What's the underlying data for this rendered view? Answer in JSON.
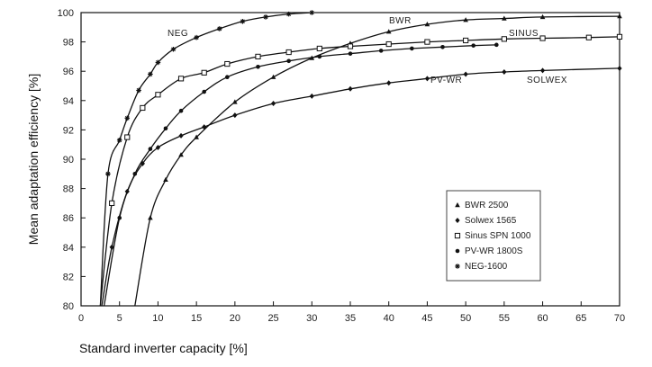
{
  "chart_data": {
    "type": "line",
    "title": "",
    "xlabel": "Standard inverter capacity [%]",
    "ylabel": "Mean adaptation efficiency [%]",
    "xlim": [
      0,
      70
    ],
    "ylim": [
      80,
      100
    ],
    "x_ticks": [
      0,
      5,
      10,
      15,
      20,
      25,
      30,
      35,
      40,
      45,
      50,
      55,
      60,
      65,
      70
    ],
    "y_ticks": [
      80,
      82,
      84,
      86,
      88,
      90,
      92,
      94,
      96,
      98,
      100
    ],
    "grid": false,
    "legend_position": "bottom-right",
    "series": [
      {
        "name": "BWR 2500",
        "label": "BWR",
        "marker": "triangle",
        "points": [
          [
            7,
            80
          ],
          [
            9,
            86
          ],
          [
            11,
            88.6
          ],
          [
            13,
            90.3
          ],
          [
            15,
            91.5
          ],
          [
            20,
            93.9
          ],
          [
            25,
            95.6
          ],
          [
            30,
            96.9
          ],
          [
            35,
            97.9
          ],
          [
            40,
            98.7
          ],
          [
            45,
            99.2
          ],
          [
            50,
            99.5
          ],
          [
            55,
            99.6
          ],
          [
            60,
            99.7
          ],
          [
            70,
            99.75
          ]
        ]
      },
      {
        "name": "Solwex 1565",
        "label": "SOLWEX",
        "marker": "diamond",
        "points": [
          [
            2.7,
            80
          ],
          [
            4,
            84
          ],
          [
            6,
            87.8
          ],
          [
            8,
            89.7
          ],
          [
            10,
            90.8
          ],
          [
            13,
            91.6
          ],
          [
            16,
            92.2
          ],
          [
            20,
            93
          ],
          [
            25,
            93.8
          ],
          [
            30,
            94.3
          ],
          [
            35,
            94.8
          ],
          [
            40,
            95.2
          ],
          [
            45,
            95.5
          ],
          [
            50,
            95.8
          ],
          [
            55,
            95.95
          ],
          [
            60,
            96.05
          ],
          [
            70,
            96.2
          ]
        ]
      },
      {
        "name": "Sinus SPN 1000",
        "label": "SINUS",
        "marker": "square",
        "points": [
          [
            2.5,
            80
          ],
          [
            4,
            87
          ],
          [
            6,
            91.5
          ],
          [
            8,
            93.5
          ],
          [
            10,
            94.4
          ],
          [
            13,
            95.5
          ],
          [
            16,
            95.9
          ],
          [
            19,
            96.5
          ],
          [
            23,
            97
          ],
          [
            27,
            97.3
          ],
          [
            31,
            97.55
          ],
          [
            35,
            97.7
          ],
          [
            40,
            97.85
          ],
          [
            45,
            98
          ],
          [
            50,
            98.1
          ],
          [
            55,
            98.2
          ],
          [
            60,
            98.25
          ],
          [
            66,
            98.3
          ],
          [
            70,
            98.35
          ]
        ]
      },
      {
        "name": "PV-WR 1800S",
        "label": "PV-WR",
        "marker": "dot",
        "points": [
          [
            3,
            80
          ],
          [
            5,
            86
          ],
          [
            7,
            89
          ],
          [
            9,
            90.7
          ],
          [
            11,
            92.1
          ],
          [
            13,
            93.3
          ],
          [
            16,
            94.6
          ],
          [
            19,
            95.6
          ],
          [
            23,
            96.3
          ],
          [
            27,
            96.7
          ],
          [
            31,
            97
          ],
          [
            35,
            97.2
          ],
          [
            39,
            97.4
          ],
          [
            43,
            97.55
          ],
          [
            47,
            97.65
          ],
          [
            51,
            97.75
          ],
          [
            54,
            97.8
          ]
        ]
      },
      {
        "name": "NEG-1600",
        "label": "NEG",
        "marker": "star",
        "points": [
          [
            2.5,
            80
          ],
          [
            3.5,
            89
          ],
          [
            5,
            91.3
          ],
          [
            6,
            92.8
          ],
          [
            7.5,
            94.7
          ],
          [
            9,
            95.8
          ],
          [
            10,
            96.6
          ],
          [
            12,
            97.5
          ],
          [
            15,
            98.3
          ],
          [
            18,
            98.9
          ],
          [
            21,
            99.4
          ],
          [
            24,
            99.7
          ],
          [
            27,
            99.9
          ],
          [
            30,
            100
          ]
        ]
      }
    ]
  }
}
